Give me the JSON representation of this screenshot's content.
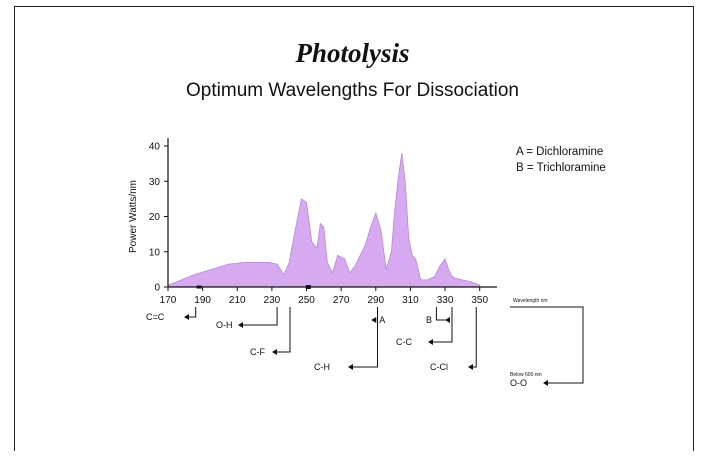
{
  "chart_data": {
    "type": "area",
    "title": "Photolysis",
    "subtitle": "Optimum Wavelengths For Dissociation",
    "ylabel": "Power Watts/nm",
    "xlabel": "Wavelength nm",
    "xlim": [
      170,
      360
    ],
    "ylim": [
      0,
      40
    ],
    "x_ticks": [
      170,
      190,
      210,
      230,
      250,
      270,
      290,
      310,
      330,
      350
    ],
    "y_ticks": [
      0,
      10,
      20,
      30,
      40
    ],
    "color": "#d6a9f0",
    "series": [
      {
        "x": [
          170,
          175,
          185,
          195,
          205,
          215,
          222,
          228,
          233,
          237,
          240,
          243,
          247,
          250,
          253,
          256,
          258,
          260,
          262,
          265,
          268,
          272,
          275,
          278,
          281,
          284,
          287,
          290,
          293,
          296,
          299,
          301,
          303,
          305,
          307,
          309,
          311,
          313,
          316,
          320,
          324,
          327,
          330,
          332,
          334,
          336,
          340,
          345,
          350
        ],
        "y": [
          0.5,
          1.5,
          3.5,
          5,
          6.5,
          7,
          7,
          7,
          6.5,
          3.5,
          7,
          15,
          25,
          24,
          13,
          11,
          18,
          17,
          7,
          4,
          9,
          8,
          4,
          6,
          9,
          12,
          17,
          21,
          16,
          5,
          10,
          22,
          31,
          38,
          30,
          14,
          9,
          8,
          2,
          2,
          3,
          6,
          8,
          5,
          3,
          2.5,
          2,
          1.5,
          0.5
        ]
      }
    ],
    "legend": [
      "A = Dichloramine",
      "B = Trichloramine"
    ],
    "annotations": [
      {
        "text": "C=C",
        "x": 186
      },
      {
        "text": "O-H",
        "x": 233
      },
      {
        "text": "C-F",
        "x": 237
      },
      {
        "text": "C-H",
        "x": 291
      },
      {
        "text": "A",
        "x": 292
      },
      {
        "text": "B",
        "x": 325
      },
      {
        "text": "C-C",
        "x": 334
      },
      {
        "text": "C-Cl",
        "x": 348
      },
      {
        "text": "Below 600 nm",
        "x": 355
      },
      {
        "text": "O-O",
        "x": 355
      }
    ]
  }
}
